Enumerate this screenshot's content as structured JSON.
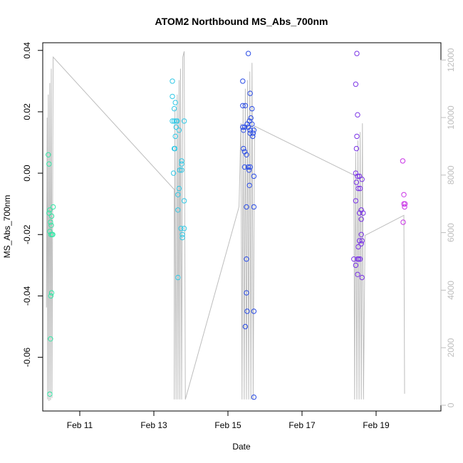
{
  "chart_data": {
    "type": "scatter",
    "title": "ATOM2 Northbound MS_Abs_700nm",
    "xlabel": "Date",
    "ylabel": "MS_Abs_700nm",
    "x_axis": {
      "range": [
        10.0,
        20.75
      ],
      "ticks": [
        {
          "value": 11,
          "label": "Feb 11"
        },
        {
          "value": 13,
          "label": "Feb 13"
        },
        {
          "value": 15,
          "label": "Feb 15"
        },
        {
          "value": 17,
          "label": "Feb 17"
        },
        {
          "value": 19,
          "label": "Feb 19"
        }
      ]
    },
    "y_axis": {
      "range": [
        -0.0775,
        0.0425
      ],
      "ticks": [
        {
          "value": 0.04,
          "label": "0.04"
        },
        {
          "value": 0.02,
          "label": "0.02"
        },
        {
          "value": 0.0,
          "label": "0.00"
        },
        {
          "value": -0.02,
          "label": "-0.02"
        },
        {
          "value": -0.04,
          "label": "-0.04"
        },
        {
          "value": -0.06,
          "label": "-0.06"
        }
      ]
    },
    "y2_axis": {
      "range": [
        -200,
        12600
      ],
      "color": "#bdbdbd",
      "ticks": [
        {
          "value": 0,
          "label": "0"
        },
        {
          "value": 2000,
          "label": "2000"
        },
        {
          "value": 4000,
          "label": "4000"
        },
        {
          "value": 6000,
          "label": "6000"
        },
        {
          "value": 8000,
          "label": "8000"
        },
        {
          "value": 10000,
          "label": "10000"
        },
        {
          "value": 12000,
          "label": "12000"
        }
      ]
    },
    "grid": false,
    "point_groups": [
      {
        "color": "#33e6a6",
        "points": [
          [
            10.15,
            0.006
          ],
          [
            10.17,
            0.003
          ],
          [
            10.17,
            -0.013
          ],
          [
            10.19,
            -0.012
          ],
          [
            10.21,
            -0.016
          ],
          [
            10.19,
            -0.019
          ],
          [
            10.23,
            -0.017
          ],
          [
            10.22,
            -0.02
          ],
          [
            10.25,
            -0.02
          ],
          [
            10.27,
            -0.02
          ],
          [
            10.24,
            -0.014
          ],
          [
            10.28,
            -0.011
          ],
          [
            10.24,
            -0.039
          ],
          [
            10.22,
            -0.04
          ],
          [
            10.21,
            -0.054
          ],
          [
            10.19,
            -0.072
          ]
        ]
      },
      {
        "color": "#33c9e6",
        "points": [
          [
            13.5,
            0.03
          ],
          [
            13.5,
            0.025
          ],
          [
            13.55,
            0.021
          ],
          [
            13.58,
            0.023
          ],
          [
            13.5,
            0.017
          ],
          [
            13.55,
            0.017
          ],
          [
            13.6,
            0.017
          ],
          [
            13.63,
            0.017
          ],
          [
            13.6,
            0.015
          ],
          [
            13.68,
            0.014
          ],
          [
            13.58,
            0.012
          ],
          [
            13.55,
            0.008
          ],
          [
            13.57,
            0.008
          ],
          [
            13.75,
            0.004
          ],
          [
            13.75,
            0.003
          ],
          [
            13.7,
            0.001
          ],
          [
            13.75,
            0.001
          ],
          [
            13.53,
            0.0
          ],
          [
            13.68,
            -0.005
          ],
          [
            13.65,
            -0.007
          ],
          [
            13.82,
            -0.009
          ],
          [
            13.65,
            -0.012
          ],
          [
            13.73,
            -0.018
          ],
          [
            13.82,
            -0.018
          ],
          [
            13.77,
            -0.02
          ],
          [
            13.77,
            -0.021
          ],
          [
            13.65,
            -0.034
          ],
          [
            13.82,
            0.017
          ]
        ]
      },
      {
        "color": "#2b4de6",
        "points": [
          [
            15.55,
            0.039
          ],
          [
            15.4,
            0.03
          ],
          [
            15.4,
            0.022
          ],
          [
            15.47,
            0.022
          ],
          [
            15.6,
            0.026
          ],
          [
            15.65,
            0.021
          ],
          [
            15.62,
            0.018
          ],
          [
            15.58,
            0.017
          ],
          [
            15.52,
            0.016
          ],
          [
            15.65,
            0.016
          ],
          [
            15.4,
            0.015
          ],
          [
            15.45,
            0.015
          ],
          [
            15.55,
            0.015
          ],
          [
            15.6,
            0.014
          ],
          [
            15.42,
            0.014
          ],
          [
            15.7,
            0.014
          ],
          [
            15.6,
            0.013
          ],
          [
            15.68,
            0.013
          ],
          [
            15.67,
            0.012
          ],
          [
            15.42,
            0.008
          ],
          [
            15.45,
            0.007
          ],
          [
            15.5,
            0.006
          ],
          [
            15.45,
            0.002
          ],
          [
            15.55,
            0.002
          ],
          [
            15.6,
            0.002
          ],
          [
            15.57,
            0.001
          ],
          [
            15.7,
            -0.001
          ],
          [
            15.58,
            -0.004
          ],
          [
            15.5,
            -0.011
          ],
          [
            15.7,
            -0.011
          ],
          [
            15.5,
            -0.028
          ],
          [
            15.5,
            -0.039
          ],
          [
            15.52,
            -0.045
          ],
          [
            15.7,
            -0.045
          ],
          [
            15.47,
            -0.05
          ],
          [
            15.7,
            -0.073
          ]
        ]
      },
      {
        "color": "#7a33e6",
        "points": [
          [
            18.48,
            0.039
          ],
          [
            18.45,
            0.029
          ],
          [
            18.5,
            0.019
          ],
          [
            18.48,
            0.012
          ],
          [
            18.47,
            0.008
          ],
          [
            18.62,
            -0.002
          ],
          [
            18.45,
            0.0
          ],
          [
            18.5,
            -0.001
          ],
          [
            18.55,
            -0.001
          ],
          [
            18.47,
            -0.003
          ],
          [
            18.52,
            -0.005
          ],
          [
            18.57,
            -0.005
          ],
          [
            18.45,
            -0.009
          ],
          [
            18.55,
            -0.013
          ],
          [
            18.6,
            -0.012
          ],
          [
            18.65,
            -0.013
          ],
          [
            18.6,
            -0.015
          ],
          [
            18.6,
            -0.02
          ],
          [
            18.55,
            -0.022
          ],
          [
            18.62,
            -0.022
          ],
          [
            18.6,
            -0.023
          ],
          [
            18.52,
            -0.024
          ],
          [
            18.4,
            -0.028
          ],
          [
            18.5,
            -0.028
          ],
          [
            18.53,
            -0.028
          ],
          [
            18.57,
            -0.028
          ],
          [
            18.45,
            -0.03
          ],
          [
            18.5,
            -0.033
          ],
          [
            18.62,
            -0.034
          ]
        ]
      },
      {
        "color": "#c933e6",
        "points": [
          [
            19.72,
            0.004
          ],
          [
            19.75,
            -0.007
          ],
          [
            19.75,
            -0.01
          ],
          [
            19.78,
            -0.01
          ],
          [
            19.77,
            -0.011
          ],
          [
            19.73,
            -0.016
          ]
        ]
      }
    ],
    "secondary_series": {
      "color": "#bdbdbd",
      "points": [
        [
          10.1,
          3400
        ],
        [
          10.12,
          10000
        ],
        [
          10.13,
          200
        ],
        [
          10.15,
          10800
        ],
        [
          10.17,
          150
        ],
        [
          10.19,
          11200
        ],
        [
          10.21,
          180
        ],
        [
          10.23,
          11700
        ],
        [
          10.25,
          250
        ],
        [
          10.28,
          12100
        ],
        [
          13.55,
          7500
        ],
        [
          13.55,
          200
        ],
        [
          13.57,
          10300
        ],
        [
          13.6,
          200
        ],
        [
          13.63,
          10800
        ],
        [
          13.65,
          200
        ],
        [
          13.68,
          11300
        ],
        [
          13.7,
          200
        ],
        [
          13.72,
          11700
        ],
        [
          13.75,
          200
        ],
        [
          13.78,
          12100
        ],
        [
          13.82,
          12300
        ],
        [
          13.85,
          200
        ],
        [
          15.3,
          6900
        ],
        [
          15.35,
          9800
        ],
        [
          15.38,
          200
        ],
        [
          15.41,
          10500
        ],
        [
          15.44,
          200
        ],
        [
          15.47,
          11000
        ],
        [
          15.5,
          200
        ],
        [
          15.53,
          11300
        ],
        [
          15.56,
          200
        ],
        [
          15.59,
          11600
        ],
        [
          15.62,
          200
        ],
        [
          15.65,
          11900
        ],
        [
          15.68,
          200
        ],
        [
          15.72,
          9700
        ],
        [
          18.4,
          8000
        ],
        [
          18.42,
          200
        ],
        [
          18.45,
          8800
        ],
        [
          18.48,
          200
        ],
        [
          18.51,
          9200
        ],
        [
          18.54,
          200
        ],
        [
          18.57,
          9500
        ],
        [
          18.6,
          200
        ],
        [
          18.63,
          9800
        ],
        [
          18.66,
          200
        ],
        [
          18.7,
          5900
        ],
        [
          19.75,
          6600
        ],
        [
          19.77,
          400
        ]
      ]
    }
  }
}
